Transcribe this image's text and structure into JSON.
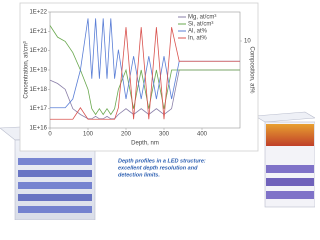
{
  "chart_data": {
    "type": "line",
    "x_label": "Depth, nm",
    "y_label": "Concentration, at/cm³",
    "y2_label": "Composition, at%",
    "x": [
      0,
      20,
      40,
      60,
      80,
      100,
      110,
      120,
      130,
      140,
      150,
      160,
      170,
      180,
      200,
      220,
      240,
      260,
      280,
      300,
      320,
      340,
      380,
      420,
      460,
      500
    ],
    "series": [
      {
        "name": "Mg, at/cm³",
        "color": "#8a7fa8",
        "values": [
          3e+18,
          2e+18,
          1e+18,
          1e+17,
          5e+16,
          3e+16,
          3e+16,
          4e+16,
          3e+16,
          3e+16,
          4e+16,
          3e+16,
          3e+16,
          5e+16,
          1e+17,
          5e+16,
          1e+17,
          5e+16,
          1e+17,
          5e+16,
          1e+17,
          1e+19,
          1e+19,
          1e+19,
          1e+19,
          1e+19
        ]
      },
      {
        "name": "Si, at/cm³",
        "color": "#6aa84f",
        "values": [
          2e+21,
          5e+20,
          3e+20,
          8e+19,
          1e+19,
          1e+18,
          1e+17,
          5e+16,
          1e+17,
          5e+16,
          1e+17,
          5e+16,
          1e+17,
          1e+18,
          1e+19,
          1e+17,
          1e+19,
          1e+17,
          1e+19,
          1e+17,
          1e+19,
          1e+19,
          1e+19,
          1e+19,
          1e+19,
          1e+19
        ]
      },
      {
        "name": "Al, at%",
        "color": "#5b7fd6",
        "axis": "y2",
        "values": [
          0.05,
          0.05,
          0.05,
          0.1,
          1,
          60,
          0.5,
          60,
          0.5,
          60,
          0.5,
          60,
          0.5,
          5,
          0.1,
          3,
          0.1,
          3,
          0.1,
          3,
          0.1,
          2,
          2,
          2,
          2,
          2
        ]
      },
      {
        "name": "In, at%",
        "color": "#d9534f",
        "axis": "y2",
        "values": [
          0.02,
          0.02,
          0.02,
          0.02,
          0.05,
          0.02,
          0.02,
          0.02,
          0.02,
          0.02,
          0.02,
          0.02,
          0.02,
          0.05,
          30,
          0.02,
          30,
          0.02,
          30,
          0.02,
          30,
          2,
          2,
          2,
          2,
          2
        ]
      }
    ],
    "xlim": [
      0,
      500
    ],
    "xticks": [
      0,
      100,
      200,
      300,
      400
    ],
    "ylim": [
      1e+16,
      1e+22
    ],
    "y_log": true,
    "yticks": [
      {
        "value": 1e+16,
        "label": "1E+16"
      },
      {
        "value": 1e+17,
        "label": "1E+17"
      },
      {
        "value": 1e+18,
        "label": "1E+18"
      },
      {
        "value": 1e+19,
        "label": "1E+19"
      },
      {
        "value": 1e+20,
        "label": "1E+20"
      },
      {
        "value": 1e+21,
        "label": "1E+21"
      },
      {
        "value": 1e+22,
        "label": "1E+22"
      }
    ],
    "y2lim": [
      0.01,
      100
    ],
    "y2_log": true,
    "y2ticks": [
      10
    ],
    "legend": "upper right",
    "annotations": [
      "Depth profiles in a LED structure:",
      "excellent depth resolution and",
      "detection limits."
    ]
  }
}
